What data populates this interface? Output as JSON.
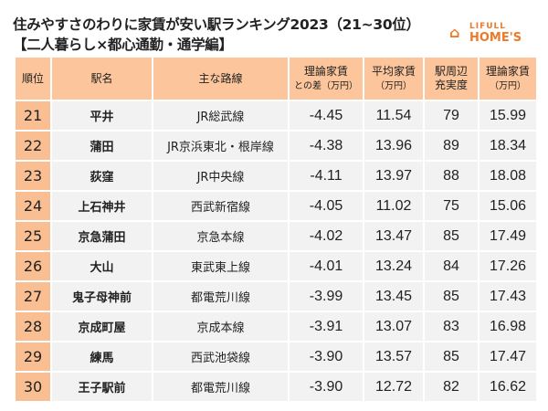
{
  "title": {
    "line1": "住みやすさのわりに家賃が安い駅ランキング2023（21~30位）",
    "line2": "【二人暮らし×都心通勤・通学編】"
  },
  "logo": {
    "top": "LIFULL",
    "bottom": "HOME'S",
    "icon": "house-icon",
    "color": "#ee7a2a"
  },
  "headers": [
    "順位",
    "駅名",
    "主な路線",
    "理論家賃",
    "との差（万円）",
    "平均家賃",
    "（万円）",
    "駅周辺",
    "充実度",
    "理論家賃",
    "（万円）"
  ],
  "rows": [
    [
      "21",
      "平井",
      "JR総武線",
      "-4.45",
      "11.54",
      "79",
      "15.99"
    ],
    [
      "22",
      "蒲田",
      "JR京浜東北・根岸線",
      "-4.38",
      "13.96",
      "89",
      "18.34"
    ],
    [
      "23",
      "荻窪",
      "JR中央線",
      "-4.11",
      "13.97",
      "88",
      "18.08"
    ],
    [
      "24",
      "上石神井",
      "西武新宿線",
      "-4.05",
      "11.02",
      "75",
      "15.06"
    ],
    [
      "25",
      "京急蒲田",
      "京急本線",
      "-4.02",
      "13.47",
      "85",
      "17.49"
    ],
    [
      "26",
      "大山",
      "東武東上線",
      "-4.01",
      "13.24",
      "84",
      "17.26"
    ],
    [
      "27",
      "鬼子母神前",
      "都電荒川線",
      "-3.99",
      "13.45",
      "85",
      "17.43"
    ],
    [
      "28",
      "京成町屋",
      "京成本線",
      "-3.91",
      "13.07",
      "83",
      "16.98"
    ],
    [
      "29",
      "練馬",
      "西武池袋線",
      "-3.90",
      "13.57",
      "85",
      "17.47"
    ],
    [
      "30",
      "王子駅前",
      "都電荒川線",
      "-3.90",
      "12.72",
      "82",
      "16.62"
    ]
  ]
}
